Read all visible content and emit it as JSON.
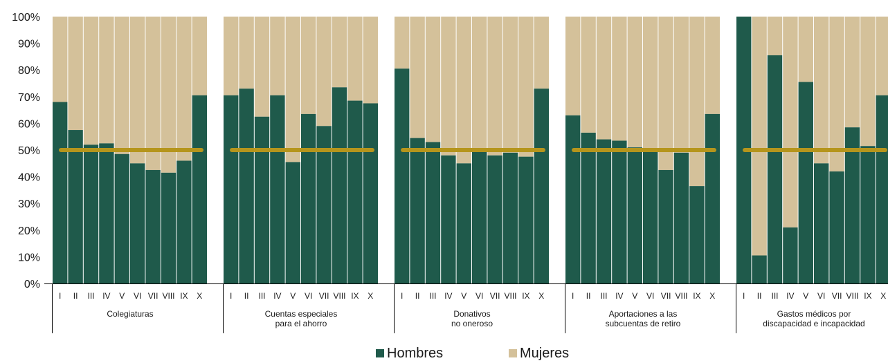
{
  "chart_data": {
    "type": "bar",
    "stacked": true,
    "percent": true,
    "ylim": [
      0,
      100
    ],
    "yticks": [
      "0%",
      "10%",
      "20%",
      "30%",
      "40%",
      "50%",
      "60%",
      "70%",
      "80%",
      "90%",
      "100%"
    ],
    "categories": [
      "I",
      "II",
      "III",
      "IV",
      "V",
      "VI",
      "VII",
      "VIII",
      "IX",
      "X"
    ],
    "reference_line": 50,
    "colors": {
      "Hombres": "#1f5a4b",
      "Mujeres": "#d4c19a",
      "reference": "#b5951c"
    },
    "legend": {
      "position": "bottom",
      "items": [
        "Hombres",
        "Mujeres"
      ]
    },
    "groups": [
      {
        "label": [
          "Colegiaturas"
        ],
        "hombres": [
          68,
          57.5,
          52,
          52.5,
          48.5,
          45,
          42.5,
          41.5,
          46,
          70.5
        ]
      },
      {
        "label": [
          "Cuentas especiales",
          "para el ahorro"
        ],
        "hombres": [
          70.5,
          73,
          62.5,
          70.5,
          45.5,
          63.5,
          59,
          73.5,
          68.5,
          67.5
        ]
      },
      {
        "label": [
          "Donativos",
          "no oneroso"
        ],
        "hombres": [
          80.5,
          54.5,
          53,
          48,
          45,
          49.5,
          48,
          49,
          47.5,
          73
        ]
      },
      {
        "label": [
          "Aportaciones a las",
          "subcuentas de retiro"
        ],
        "hombres": [
          63,
          56.5,
          54,
          53.5,
          51,
          49.5,
          42.5,
          49,
          36.5,
          63.5
        ]
      },
      {
        "label": [
          "Gastos médicos por",
          "discapacidad e incapacidad"
        ],
        "hombres": [
          100,
          10.5,
          85.5,
          21,
          75.5,
          45,
          42,
          58.5,
          51.5,
          70.5
        ]
      }
    ]
  }
}
